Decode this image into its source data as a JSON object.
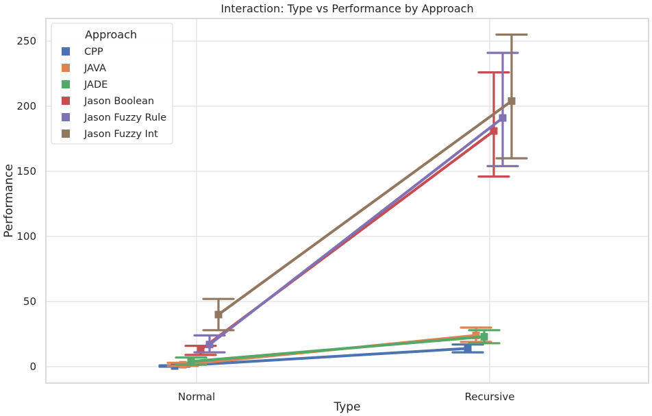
{
  "chart_data": {
    "type": "line",
    "title": "Interaction: Type vs Performance by Approach",
    "xlabel": "Type",
    "ylabel": "Performance",
    "categories": [
      "Normal",
      "Recursive"
    ],
    "ylim": [
      -7,
      268
    ],
    "yticks": [
      0,
      50,
      100,
      150,
      200,
      250
    ],
    "grid": true,
    "legend": {
      "title": "Approach",
      "placement": "top-left"
    },
    "series": [
      {
        "name": "CPP",
        "color": "#4c72b0",
        "values": [
          0.5,
          14
        ],
        "err_low": [
          0,
          11
        ],
        "err_high": [
          1,
          17
        ]
      },
      {
        "name": "JAVA",
        "color": "#dd8452",
        "values": [
          1.5,
          24
        ],
        "err_low": [
          0.5,
          19
        ],
        "err_high": [
          3,
          30
        ]
      },
      {
        "name": "JADE",
        "color": "#55a868",
        "values": [
          4,
          23
        ],
        "err_low": [
          1.5,
          18
        ],
        "err_high": [
          7,
          28
        ]
      },
      {
        "name": "Jason Boolean",
        "color": "#c44e52",
        "values": [
          13,
          181
        ],
        "err_low": [
          9,
          146
        ],
        "err_high": [
          16,
          226
        ]
      },
      {
        "name": "Jason Fuzzy Rule",
        "color": "#8172b3",
        "values": [
          17,
          191
        ],
        "err_low": [
          11,
          154
        ],
        "err_high": [
          24,
          241
        ]
      },
      {
        "name": "Jason Fuzzy Int",
        "color": "#937860",
        "values": [
          40,
          204
        ],
        "err_low": [
          28,
          160
        ],
        "err_high": [
          52,
          255
        ]
      }
    ]
  }
}
